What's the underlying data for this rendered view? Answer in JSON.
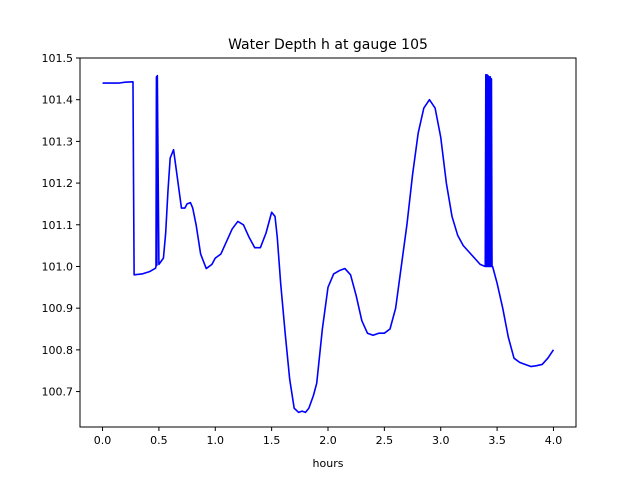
{
  "chart_data": {
    "type": "line",
    "title": "Water Depth h at gauge 105",
    "xlabel": "hours",
    "ylabel": "",
    "xlim": [
      -0.2,
      4.2
    ],
    "ylim": [
      100.615,
      101.5
    ],
    "xticks": [
      0.0,
      0.5,
      1.0,
      1.5,
      2.0,
      2.5,
      3.0,
      3.5,
      4.0
    ],
    "xtick_labels": [
      "0.0",
      "0.5",
      "1.0",
      "1.5",
      "2.0",
      "2.5",
      "3.0",
      "3.5",
      "4.0"
    ],
    "yticks": [
      100.7,
      100.8,
      100.9,
      101.0,
      101.1,
      101.2,
      101.3,
      101.4,
      101.5
    ],
    "ytick_labels": [
      "100.7",
      "100.8",
      "100.9",
      "101.0",
      "101.1",
      "101.2",
      "101.3",
      "101.4",
      "101.5"
    ],
    "grid": false,
    "color": "#0000ff",
    "series": [
      {
        "x": [
          0.0,
          0.15,
          0.2,
          0.27,
          0.275,
          0.28,
          0.35,
          0.42,
          0.47,
          0.474,
          0.478,
          0.482,
          0.486,
          0.5,
          0.54,
          0.56,
          0.58,
          0.6,
          0.63,
          0.66,
          0.7,
          0.73,
          0.75,
          0.78,
          0.8,
          0.83,
          0.87,
          0.92,
          0.97,
          1.0,
          1.05,
          1.1,
          1.15,
          1.2,
          1.25,
          1.3,
          1.35,
          1.4,
          1.45,
          1.5,
          1.53,
          1.55,
          1.58,
          1.62,
          1.66,
          1.7,
          1.74,
          1.77,
          1.8,
          1.83,
          1.87,
          1.9,
          1.95,
          2.0,
          2.05,
          2.1,
          2.15,
          2.2,
          2.25,
          2.3,
          2.35,
          2.4,
          2.45,
          2.5,
          2.55,
          2.6,
          2.65,
          2.7,
          2.75,
          2.8,
          2.85,
          2.9,
          2.95,
          3.0,
          3.05,
          3.1,
          3.15,
          3.2,
          3.25,
          3.3,
          3.35,
          3.395,
          3.4,
          3.405,
          3.41,
          3.415,
          3.42,
          3.425,
          3.43,
          3.435,
          3.44,
          3.445,
          3.45,
          3.455,
          3.46,
          3.47,
          3.5,
          3.55,
          3.6,
          3.65,
          3.7,
          3.75,
          3.8,
          3.85,
          3.9,
          3.95,
          4.0
        ],
        "y": [
          101.44,
          101.44,
          101.442,
          101.443,
          101.2,
          100.98,
          100.982,
          100.988,
          100.996,
          101.0,
          101.455,
          101.003,
          101.458,
          101.005,
          101.02,
          101.08,
          101.18,
          101.26,
          101.28,
          101.22,
          101.14,
          101.14,
          101.15,
          101.153,
          101.14,
          101.1,
          101.03,
          100.995,
          101.005,
          101.02,
          101.03,
          101.06,
          101.09,
          101.108,
          101.1,
          101.07,
          101.045,
          101.045,
          101.08,
          101.13,
          101.12,
          101.07,
          100.96,
          100.84,
          100.73,
          100.66,
          100.65,
          100.653,
          100.65,
          100.66,
          100.69,
          100.72,
          100.85,
          100.95,
          100.982,
          100.99,
          100.995,
          100.98,
          100.93,
          100.87,
          100.84,
          100.835,
          100.84,
          100.84,
          100.85,
          100.9,
          101.0,
          101.1,
          101.22,
          101.32,
          101.38,
          101.4,
          101.38,
          101.31,
          101.2,
          101.12,
          101.075,
          101.05,
          101.035,
          101.02,
          101.005,
          101.0,
          101.46,
          101.0,
          101.46,
          101.0,
          101.458,
          101.0,
          101.455,
          101.0,
          101.455,
          101.0,
          101.45,
          101.0,
          101.0,
          100.99,
          100.96,
          100.9,
          100.83,
          100.78,
          100.77,
          100.765,
          100.76,
          100.762,
          100.765,
          100.78,
          100.8
        ]
      }
    ]
  }
}
